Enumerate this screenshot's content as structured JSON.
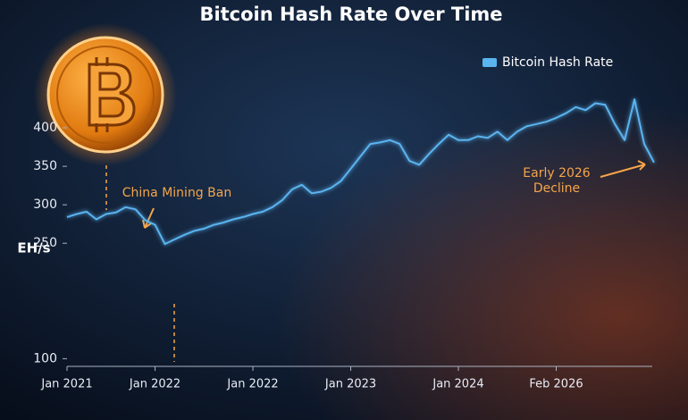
{
  "chart_data": {
    "type": "line",
    "title": "Bitcoin Hash Rate Over Time",
    "y_label": "EH/s",
    "categories": [
      "Jan 2021",
      null,
      null,
      null,
      null,
      null,
      null,
      null,
      null,
      "Jan 2022",
      null,
      null,
      null,
      null,
      null,
      null,
      null,
      null,
      null,
      "Jan 2022",
      null,
      null,
      null,
      null,
      null,
      null,
      null,
      null,
      null,
      "Jan 2023",
      null,
      null,
      null,
      null,
      null,
      null,
      null,
      null,
      null,
      null,
      "Jan 2024",
      null,
      null,
      null,
      null,
      null,
      null,
      null,
      null,
      null,
      "Feb 2026",
      null,
      null,
      null,
      null,
      null,
      null,
      null,
      null,
      null,
      null
    ],
    "series": [
      {
        "name": "Bitcoin Hash Rate",
        "color": "#5ab4f0",
        "values": [
          284,
          288,
          291,
          281,
          288,
          290,
          297,
          294,
          280,
          274,
          249,
          255,
          261,
          266,
          269,
          274,
          277,
          281,
          284,
          288,
          291,
          297,
          306,
          320,
          326,
          315,
          317,
          322,
          331,
          347,
          363,
          379,
          381,
          384,
          379,
          357,
          352,
          366,
          379,
          391,
          384,
          384,
          389,
          387,
          395,
          384,
          395,
          402,
          405,
          408,
          413,
          419,
          427,
          423,
          432,
          430,
          405,
          384,
          437,
          379,
          355
        ]
      }
    ],
    "ylim": [
      90,
      450
    ],
    "yticks": [
      100,
      250,
      300,
      350,
      400
    ],
    "grid": false,
    "legend": "top-right",
    "annotations": [
      "China Mining Ban",
      "Early 2026 Decline"
    ]
  }
}
